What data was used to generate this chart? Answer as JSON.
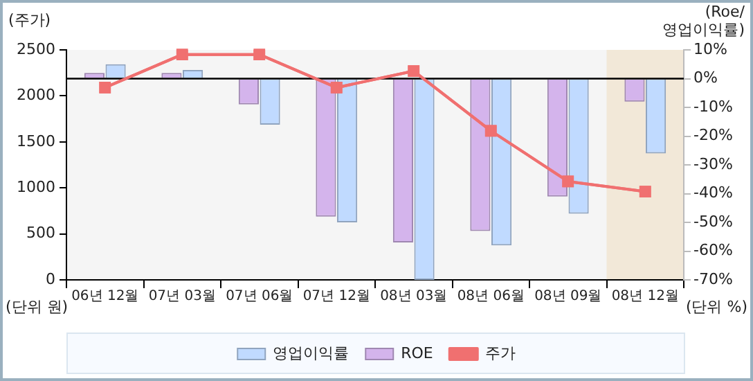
{
  "chart_data": {
    "type": "bar",
    "ylabel": "(주가)",
    "y2label": "(Roe/영업이익률)",
    "categories": [
      "06년 12월",
      "07년 03월",
      "07년 06월",
      "07년 12월",
      "08년 03월",
      "08년 06월",
      "08년 09월",
      "08년 12월"
    ],
    "series": [
      {
        "name": "ROE",
        "axis": "y2",
        "color": "#d4b4ec",
        "values": [
          2,
          2,
          -9,
          -48,
          -57,
          -53,
          -41,
          -8
        ]
      },
      {
        "name": "영업이익률",
        "axis": "y2",
        "color": "#c0daff",
        "values": [
          5,
          3,
          -16,
          -50,
          -70,
          -58,
          -47,
          -26
        ]
      },
      {
        "name": "주가",
        "type": "line",
        "color": "#f07070",
        "marker": "square",
        "values": [
          2090,
          2450,
          2450,
          2090,
          2270,
          1620,
          1070,
          960
        ]
      }
    ],
    "ylim": [
      0,
      2500
    ],
    "yticks": [
      0,
      500,
      1000,
      1500,
      2000,
      2500
    ],
    "y2lim": [
      -70,
      10
    ],
    "y2ticks": [
      {
        "value": 10,
        "label": "10%"
      },
      {
        "value": 0,
        "label": "0%"
      },
      {
        "value": -10,
        "label": "-10%"
      },
      {
        "value": -20,
        "label": "-20%"
      },
      {
        "value": -30,
        "label": "-30%"
      },
      {
        "value": -40,
        "label": "-40%"
      },
      {
        "value": -50,
        "label": "-50%"
      },
      {
        "value": -60,
        "label": "-60%"
      },
      {
        "value": -70,
        "label": "-70%"
      }
    ],
    "bands": [
      {
        "axis": "x",
        "from": "08년 12월",
        "to": "08년 12월",
        "color": "#f2e8d8"
      }
    ],
    "annotations": [
      "(단위 원)",
      "(단위 %)"
    ],
    "legend": "bottom"
  }
}
